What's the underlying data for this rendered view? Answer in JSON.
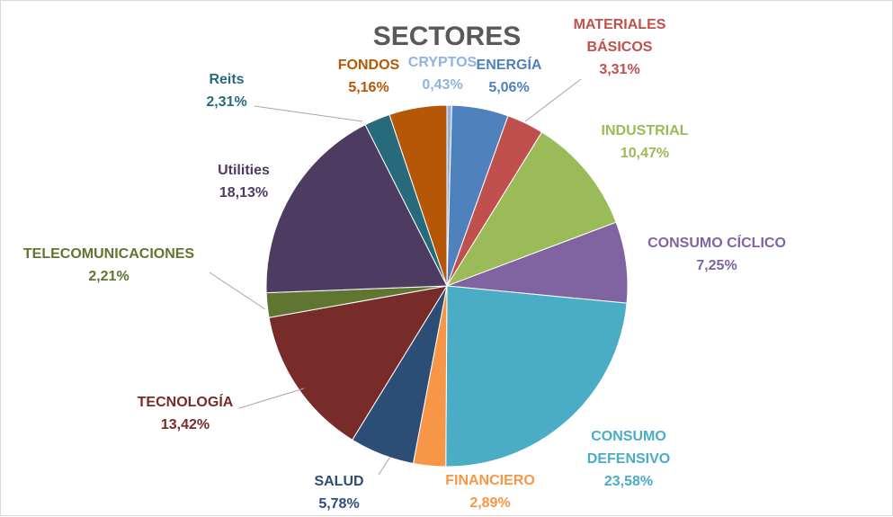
{
  "chart_data": {
    "type": "pie",
    "title": "SECTORES",
    "slices": [
      {
        "name": "CRYPTOS",
        "value": 0.43,
        "value_label": "0,43%",
        "color": "#8eb4e3"
      },
      {
        "name": "ENERGÍA",
        "value": 5.06,
        "value_label": "5,06%",
        "color": "#4f81bd"
      },
      {
        "name": "MATERIALES BÁSICOS",
        "value": 3.31,
        "value_label": "3,31%",
        "color": "#c0504d"
      },
      {
        "name": "INDUSTRIAL",
        "value": 10.47,
        "value_label": "10,47%",
        "color": "#9bbb59"
      },
      {
        "name": "CONSUMO CÍCLICO",
        "value": 7.25,
        "value_label": "7,25%",
        "color": "#8064a2"
      },
      {
        "name": "CONSUMO DEFENSIVO",
        "value": 23.58,
        "value_label": "23,58%",
        "color": "#4bacc6"
      },
      {
        "name": "FINANCIERO",
        "value": 2.89,
        "value_label": "2,89%",
        "color": "#f79646"
      },
      {
        "name": "SALUD",
        "value": 5.78,
        "value_label": "5,78%",
        "color": "#2c4d75"
      },
      {
        "name": "TECNOLOGÍA",
        "value": 13.42,
        "value_label": "13,42%",
        "color": "#772c2a"
      },
      {
        "name": "TELECOMUNICACIONES",
        "value": 2.21,
        "value_label": "2,21%",
        "color": "#5f7530"
      },
      {
        "name": "Utilities",
        "value": 18.13,
        "value_label": "18,13%",
        "color": "#4d3b62"
      },
      {
        "name": "Reits",
        "value": 2.31,
        "value_label": "2,31%",
        "color": "#276a7c"
      },
      {
        "name": "FONDOS",
        "value": 5.16,
        "value_label": "5,16%",
        "color": "#b65708"
      }
    ]
  }
}
